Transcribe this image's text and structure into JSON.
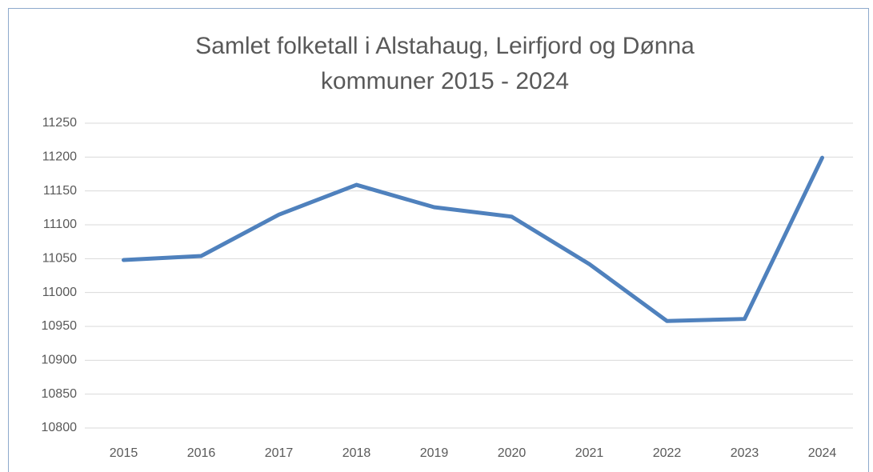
{
  "chart_data": {
    "type": "line",
    "title": "Samlet folketall i Alstahaug, Leirfjord og Dønna kommuner 2015 - 2024",
    "categories": [
      "2015",
      "2016",
      "2017",
      "2018",
      "2019",
      "2020",
      "2021",
      "2022",
      "2023",
      "2024"
    ],
    "values": [
      11048,
      11054,
      11115,
      11159,
      11126,
      11112,
      11042,
      10958,
      10961,
      11199
    ],
    "color": "#4f81bd",
    "ylim": [
      10800,
      11250
    ],
    "yticks": [
      10800,
      10850,
      10900,
      10950,
      11000,
      11050,
      11100,
      11150,
      11200,
      11250
    ],
    "grid": true
  }
}
